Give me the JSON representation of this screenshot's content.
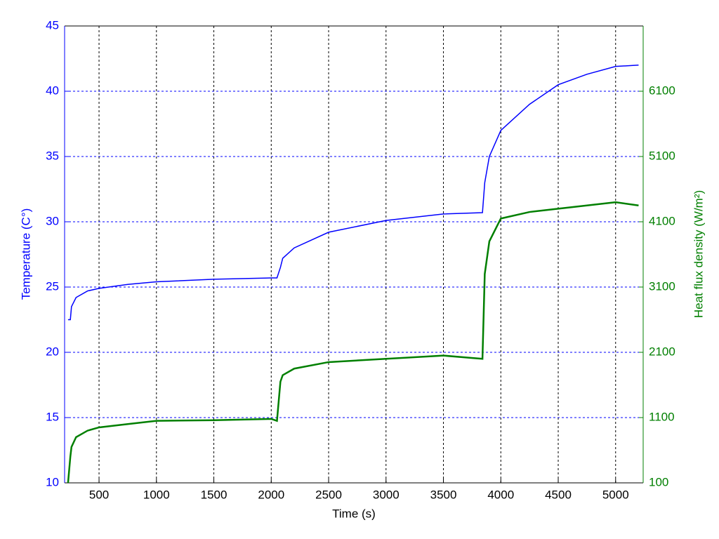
{
  "chart_data": {
    "type": "line",
    "x_label": "Time (s)",
    "y_label": "Temperature (C°)",
    "y2_label": "Heat flux density (W/m²)",
    "x": [
      230,
      250,
      260,
      300,
      400,
      500,
      750,
      1000,
      1500,
      2000,
      2050,
      2080,
      2100,
      2200,
      2500,
      3000,
      3500,
      3840,
      3860,
      3900,
      4000,
      4250,
      4500,
      4750,
      5000,
      5200
    ],
    "series": [
      {
        "name": "Temperature",
        "color": "#0000ff",
        "axis": "y",
        "values": [
          22.5,
          22.5,
          23.5,
          24.2,
          24.7,
          24.9,
          25.2,
          25.4,
          25.6,
          25.7,
          25.7,
          26.5,
          27.2,
          28.0,
          29.2,
          30.1,
          30.6,
          30.7,
          33,
          35,
          37,
          39,
          40.5,
          41.3,
          41.9,
          42.0
        ]
      },
      {
        "name": "Heat flux density",
        "color": "#007f00",
        "axis": "y2",
        "values": [
          100,
          500,
          650,
          800,
          900,
          950,
          1000,
          1050,
          1060,
          1080,
          1050,
          1650,
          1750,
          1850,
          1950,
          2000,
          2050,
          2000,
          3300,
          3800,
          4150,
          4250,
          4300,
          4350,
          4400,
          4350
        ]
      }
    ],
    "xlim": [
      200,
      5240
    ],
    "xticks": [
      500,
      1000,
      1500,
      2000,
      2500,
      3000,
      3500,
      4000,
      4500,
      5000
    ],
    "ylim": [
      10,
      45
    ],
    "yticks": [
      10,
      15,
      20,
      25,
      30,
      35,
      40,
      45
    ],
    "y2lim": [
      100,
      7100
    ],
    "y2ticks": [
      100,
      1100,
      2100,
      3100,
      4100,
      5100,
      6100
    ],
    "grid": true
  }
}
